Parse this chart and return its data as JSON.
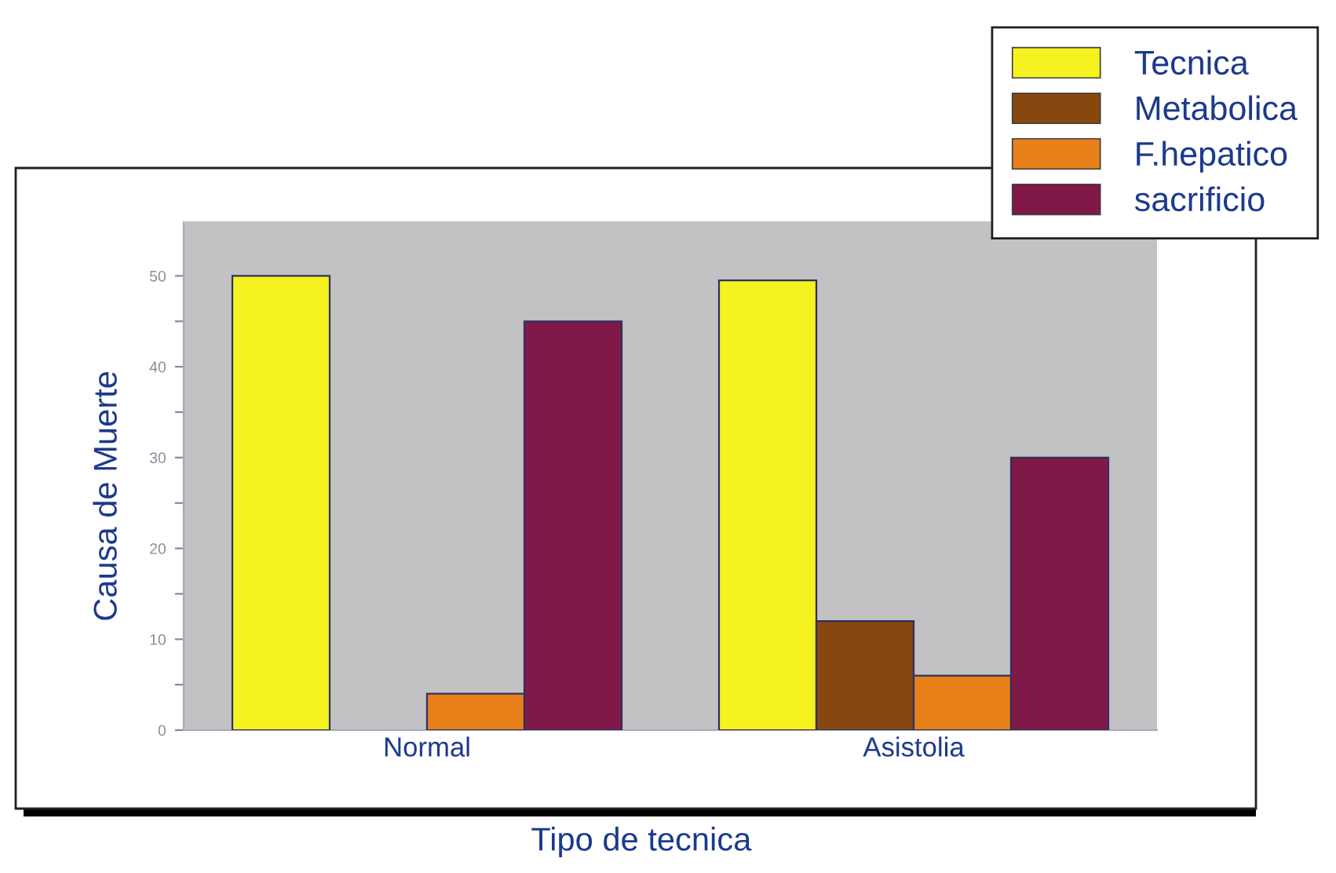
{
  "chart_data": {
    "type": "bar",
    "xlabel": "Tipo de tecnica",
    "ylabel": "Causa de Muerte",
    "categories": [
      "Normal",
      "Asistolia"
    ],
    "series": [
      {
        "name": "Tecnica",
        "color": "#f5f220",
        "values": [
          50,
          49.5
        ]
      },
      {
        "name": "Metabolica",
        "color": "#874810",
        "values": [
          null,
          12
        ]
      },
      {
        "name": "F.hepatico",
        "color": "#e8801a",
        "values": [
          4,
          6
        ]
      },
      {
        "name": "sacrificio",
        "color": "#801848",
        "values": [
          45,
          30
        ]
      }
    ],
    "ylim": [
      0,
      56
    ],
    "yticks": [
      0,
      {
        "value": 5,
        "label": null
      },
      10,
      {
        "value": 15,
        "label": null
      },
      20,
      {
        "value": 25,
        "label": null
      },
      30,
      {
        "value": 35,
        "label": null
      },
      40,
      {
        "value": 45,
        "label": null
      },
      50
    ],
    "legend": "top right",
    "grid": false
  }
}
